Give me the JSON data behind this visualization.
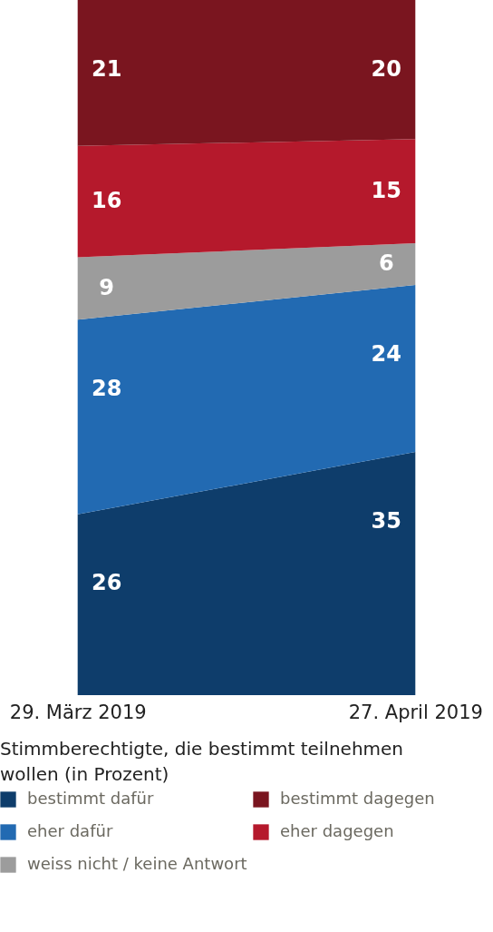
{
  "chart_data": {
    "type": "area",
    "stacked": true,
    "categories": [
      "29. März 2019",
      "27. April 2019"
    ],
    "ylim": [
      0,
      100
    ],
    "tick_labels": "x",
    "data_labels": true,
    "legend": "bottom",
    "legend_title": "Stimmberechtigte, die bestimmt teilnehmen wollen (in Prozent)",
    "grid": false,
    "series": [
      {
        "name": "bestimmt dafür",
        "color": "#0e3d6b",
        "values": [
          26,
          35
        ]
      },
      {
        "name": "eher dafür",
        "color": "#226ab2",
        "values": [
          28,
          24
        ]
      },
      {
        "name": "weiss nicht / keine Antwort",
        "color": "#9c9c9c",
        "values": [
          9,
          6
        ]
      },
      {
        "name": "eher dagegen",
        "color": "#b5192c",
        "values": [
          16,
          15
        ]
      },
      {
        "name": "bestimmt dagegen",
        "color": "#7a151f",
        "values": [
          21,
          20
        ]
      }
    ]
  }
}
